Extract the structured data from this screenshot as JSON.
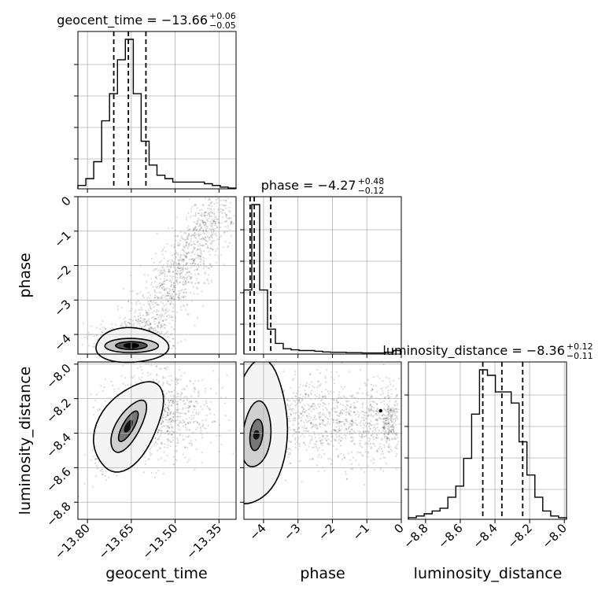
{
  "chart_data": {
    "type": "corner",
    "parameters": [
      "geocent_time",
      "phase",
      "luminosity_distance"
    ],
    "axis_labels": {
      "geocent_time": "geocent_time",
      "phase": "phase",
      "luminosity_distance": "luminosity_distance"
    },
    "ticks": {
      "geocent_time": [
        -13.8,
        -13.65,
        -13.5,
        -13.35
      ],
      "phase": [
        -4,
        -3,
        -2,
        -1,
        0
      ],
      "luminosity_distance": [
        -8.8,
        -8.6,
        -8.4,
        -8.2,
        -8.0
      ]
    },
    "tick_labels": {
      "geocent_time": [
        "−13.80",
        "−13.65",
        "−13.50",
        "−13.35"
      ],
      "phase": [
        "−4",
        "−3",
        "−2",
        "−1",
        "0"
      ],
      "luminosity_distance": [
        "−8.8",
        "−8.6",
        "−8.4",
        "−8.2",
        "−8.0"
      ]
    },
    "ranges": {
      "geocent_time": [
        -13.8327,
        -13.2917
      ],
      "phase": [
        -4.57,
        0.0
      ],
      "luminosity_distance": [
        -8.8991,
        -7.9873
      ]
    },
    "titles": [
      {
        "param": "geocent_time",
        "prefix": "geocent_time = −13.66",
        "plus": "+0.06",
        "minus": "−0.05"
      },
      {
        "param": "phase",
        "prefix": "phase = −4.27",
        "plus": "+0.48",
        "minus": "−0.12"
      },
      {
        "param": "luminosity_distance",
        "prefix": "luminosity_distance = −8.36",
        "plus": "+0.12",
        "minus": "−0.11"
      }
    ],
    "quantiles": {
      "geocent_time": [
        -13.71,
        -13.66,
        -13.6
      ],
      "phase": [
        -4.39,
        -4.27,
        -3.79
      ],
      "luminosity_distance": [
        -8.47,
        -8.36,
        -8.24
      ]
    },
    "histograms": {
      "geocent_time": {
        "edges": [
          -13.8327,
          -13.8056,
          -13.7786,
          -13.7515,
          -13.7245,
          -13.6974,
          -13.6704,
          -13.6433,
          -13.6163,
          -13.5892,
          -13.5622,
          -13.5351,
          -13.5081,
          -13.481,
          -13.454,
          -13.4269,
          -13.3999,
          -13.3728,
          -13.3458,
          -13.3187,
          -13.2917
        ],
        "counts": [
          1,
          3,
          8,
          20,
          28,
          38,
          44,
          28,
          14,
          7,
          4,
          3,
          2,
          2,
          2,
          2,
          1.5,
          1,
          0.5,
          0.2
        ]
      },
      "phase": {
        "edges": [
          -4.57,
          -4.3415,
          -4.113,
          -3.8845,
          -3.656,
          -3.4275,
          -3.199,
          -2.9705,
          -2.742,
          -2.5135,
          -2.285,
          -2.0565,
          -1.828,
          -1.5995,
          -1.371,
          -1.1425,
          -0.914,
          -0.6855,
          -0.457,
          -0.2285,
          0.0
        ],
        "counts": [
          18,
          42,
          18,
          7,
          3,
          1.5,
          1.2,
          1,
          1,
          0.8,
          0.6,
          0.5,
          0.5,
          0.4,
          0.4,
          0.3,
          0.3,
          0.3,
          0.5,
          1
        ]
      },
      "luminosity_distance": {
        "edges": [
          -8.8991,
          -8.8535,
          -8.8079,
          -8.7623,
          -8.7167,
          -8.6712,
          -8.6256,
          -8.58,
          -8.5344,
          -8.4888,
          -8.4432,
          -8.3976,
          -8.352,
          -8.3064,
          -8.2608,
          -8.2153,
          -8.1697,
          -8.1241,
          -8.0785,
          -8.0329,
          -7.9873
        ],
        "counts": [
          0.3,
          0.6,
          1,
          1.5,
          2,
          4,
          6,
          11,
          19,
          27,
          26,
          23,
          23,
          21,
          14,
          8,
          4,
          1.5,
          0.6,
          0.3
        ]
      }
    },
    "density_centers": {
      "phase_vs_geocent_time": {
        "x": -13.65,
        "y": -4.3
      },
      "luminosity_distance_vs_geocent_time": {
        "x": -13.66,
        "y": -8.36
      },
      "luminosity_distance_vs_phase": {
        "x": -4.3,
        "y": -8.41
      }
    },
    "grid": true,
    "legend": "none"
  }
}
